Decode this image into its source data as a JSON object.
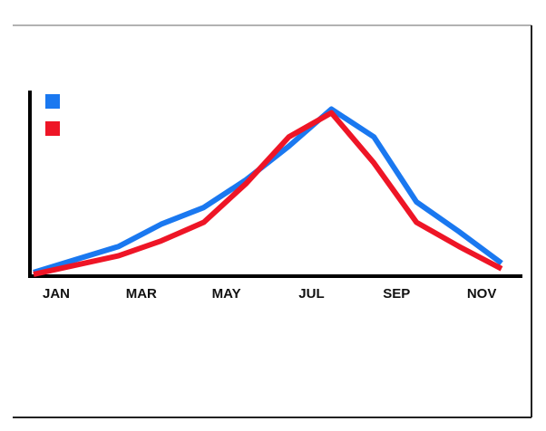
{
  "chart_data": {
    "type": "line",
    "categories": [
      "JAN",
      null,
      "MAR",
      null,
      "MAY",
      null,
      "JUL",
      null,
      "SEP",
      null,
      "NOV",
      null
    ],
    "series": [
      {
        "color": "#1a78f0",
        "values": [
          2,
          9,
          16,
          28,
          37,
          52,
          70,
          90,
          75,
          40,
          24,
          7
        ]
      },
      {
        "color": "#ee1526",
        "values": [
          1,
          6,
          11,
          19,
          29,
          50,
          75,
          88,
          61,
          29,
          16,
          4
        ]
      }
    ],
    "ylim": [
      0,
      100
    ]
  }
}
